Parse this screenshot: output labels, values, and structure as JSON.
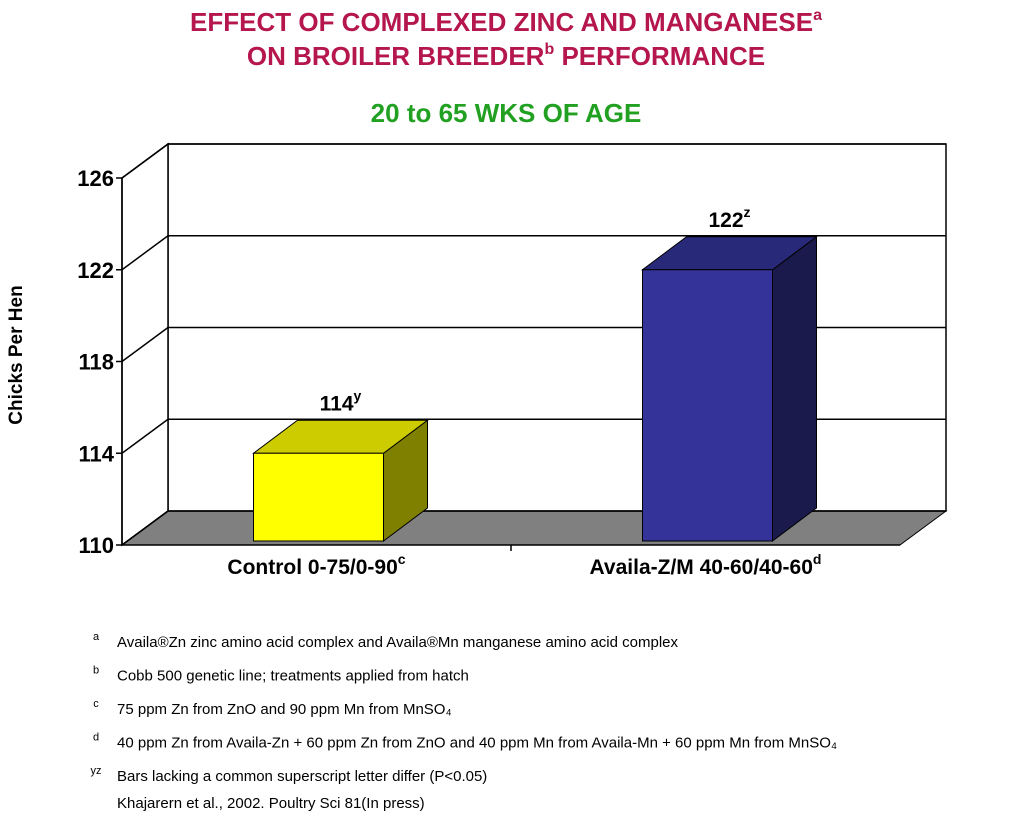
{
  "chart_data": {
    "type": "bar3d",
    "title": [
      [
        "EFFECT OF COMPLEXED ZINC AND MANGANESE",
        "a"
      ],
      [
        "ON BROILER BREEDER",
        "b",
        " PERFORMANCE"
      ]
    ],
    "subtitle": "20 to 65 WKS OF AGE",
    "ylabel": "Chicks Per Hen",
    "categories": [
      [
        "Control 0-75/0-90",
        "c"
      ],
      [
        "Availa-Z/M 40-60/40-60",
        "d"
      ]
    ],
    "values": [
      114,
      122
    ],
    "value_superscripts": [
      "y",
      "z"
    ],
    "colors": [
      "#ffff00",
      "#333399"
    ],
    "ylim": [
      110,
      126
    ],
    "yticks": [
      110,
      114,
      118,
      122,
      126
    ],
    "grid": true,
    "footnotes": [
      {
        "mark": "a",
        "text": "Availa®Zn zinc amino acid complex and Availa®Mn manganese amino acid complex"
      },
      {
        "mark": "b",
        "text": "Cobb 500 genetic line; treatments applied from hatch"
      },
      {
        "mark": "c",
        "text": "75 ppm Zn from ZnO and 90 ppm Mn from MnSO₄"
      },
      {
        "mark": "d",
        "text": "40 ppm Zn from Availa-Zn + 60 ppm Zn from ZnO and 40 ppm Mn from Availa-Mn + 60 ppm Mn from MnSO₄"
      },
      {
        "mark": "yz",
        "text": "Bars lacking a common superscript letter differ (P<0.05)"
      }
    ],
    "source": "Khajarern et al., 2002. Poultry Sci 81(In press)"
  }
}
